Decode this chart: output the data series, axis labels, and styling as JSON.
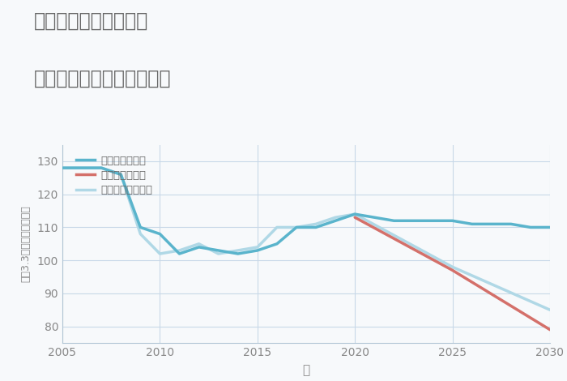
{
  "title_line1": "奈良県橿原市豊田町の",
  "title_line2": "中古マンションの価格推移",
  "xlabel": "年",
  "ylabel": "平（3.3㎡）単価（万円）",
  "background_color": "#f7f9fb",
  "plot_background": "#f7f9fb",
  "good_scenario": {
    "label": "グッドシナリオ",
    "color": "#5ab4cc",
    "years": [
      2005,
      2007,
      2008,
      2009,
      2010,
      2011,
      2012,
      2013,
      2014,
      2015,
      2016,
      2017,
      2018,
      2019,
      2020,
      2021,
      2022,
      2023,
      2024,
      2025,
      2026,
      2027,
      2028,
      2029,
      2030
    ],
    "values": [
      128,
      128,
      126,
      110,
      108,
      102,
      104,
      103,
      102,
      103,
      105,
      110,
      110,
      112,
      114,
      113,
      112,
      112,
      112,
      112,
      111,
      111,
      111,
      110,
      110
    ],
    "linewidth": 2.5
  },
  "bad_scenario": {
    "label": "バッドシナリオ",
    "color": "#d4706a",
    "years": [
      2020,
      2025,
      2030
    ],
    "values": [
      113,
      97,
      79
    ],
    "linewidth": 2.5
  },
  "normal_scenario": {
    "label": "ノーマルシナリオ",
    "color": "#b0d8e6",
    "years": [
      2005,
      2007,
      2008,
      2009,
      2010,
      2011,
      2012,
      2013,
      2014,
      2015,
      2016,
      2017,
      2018,
      2019,
      2020,
      2025,
      2030
    ],
    "values": [
      128,
      128,
      126,
      108,
      102,
      103,
      105,
      102,
      103,
      104,
      110,
      110,
      111,
      113,
      114,
      98,
      85
    ],
    "linewidth": 2.5
  },
  "xlim": [
    2005,
    2030
  ],
  "ylim": [
    75,
    135
  ],
  "yticks": [
    80,
    90,
    100,
    110,
    120,
    130
  ],
  "xticks": [
    2005,
    2010,
    2015,
    2020,
    2025,
    2030
  ],
  "grid_color": "#c8d8e8",
  "title_color": "#666666",
  "tick_color": "#888888",
  "legend_text_color": "#666666",
  "axis_line_color": "#b0c4d4"
}
